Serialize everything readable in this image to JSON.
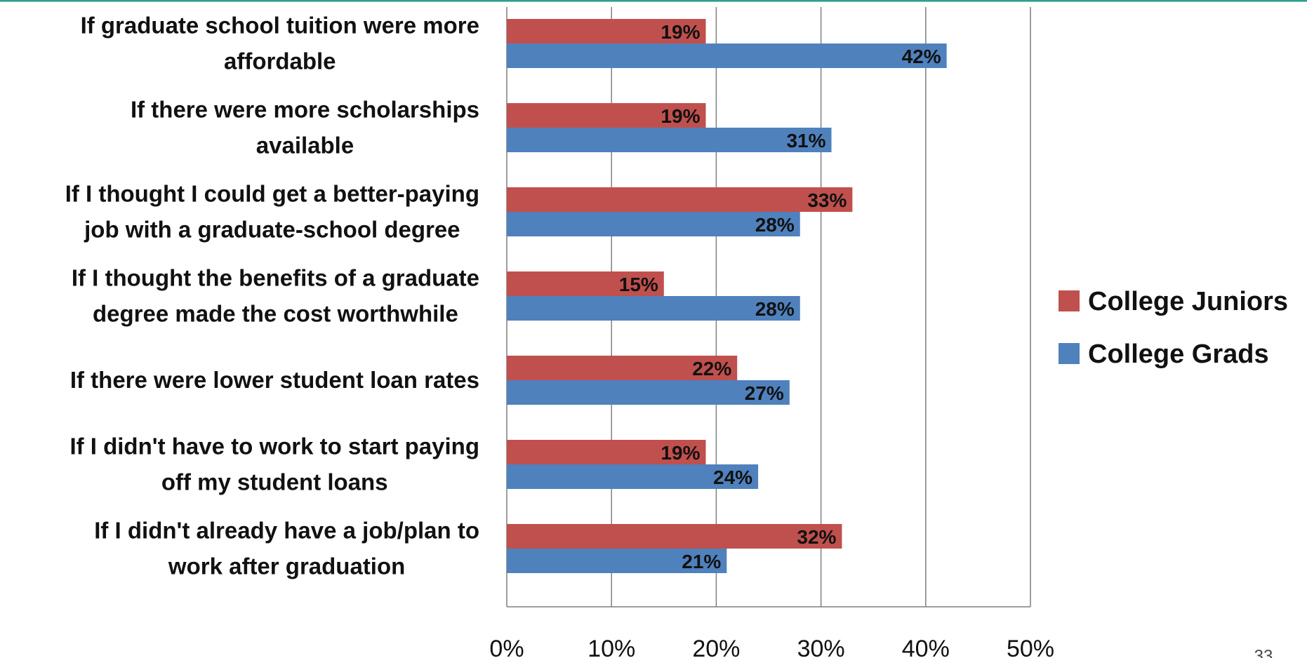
{
  "page_number": "33",
  "colors": {
    "top_rule": "#2e9e8e",
    "grid": "#7f7f7f",
    "juniors": "#c0504d",
    "grads": "#4f81bd"
  },
  "chart_data": {
    "type": "bar",
    "orientation": "horizontal",
    "title": "",
    "xlabel": "",
    "ylabel": "",
    "xlim": [
      0,
      50
    ],
    "ticks": [
      0,
      10,
      20,
      30,
      40,
      50
    ],
    "tick_labels": [
      "0%",
      "10%",
      "20%",
      "30%",
      "40%",
      "50%"
    ],
    "grid": true,
    "legend_position": "right",
    "categories": [
      [
        "If graduate school tuition were more",
        "affordable"
      ],
      [
        "If there were more scholarships",
        "available"
      ],
      [
        "If I thought I could get a better-paying",
        "job with a graduate-school degree"
      ],
      [
        "If I thought the benefits of a graduate",
        "degree made the cost worthwhile"
      ],
      [
        "If there were lower student loan rates"
      ],
      [
        "If I didn't have to work to start paying",
        "off my student loans"
      ],
      [
        "If I didn't already have a job/plan to",
        "work after graduation"
      ]
    ],
    "series": [
      {
        "name": "College Juniors",
        "color": "#c0504d",
        "values": [
          19,
          19,
          33,
          15,
          22,
          19,
          32
        ],
        "labels": [
          "19%",
          "19%",
          "33%",
          "15%",
          "22%",
          "19%",
          "32%"
        ]
      },
      {
        "name": "College Grads",
        "color": "#4f81bd",
        "values": [
          42,
          31,
          28,
          28,
          27,
          24,
          21
        ],
        "labels": [
          "42%",
          "31%",
          "28%",
          "28%",
          "27%",
          "24%",
          "21%"
        ]
      }
    ]
  }
}
